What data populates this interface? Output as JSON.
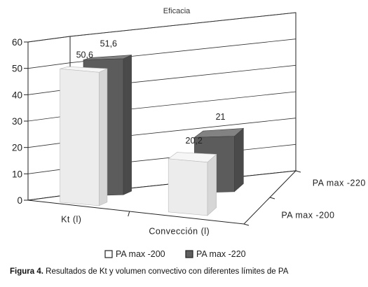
{
  "chart_data": {
    "type": "bar",
    "title": "Eficacia",
    "categories": [
      "Kt (l)",
      "Convección (l)"
    ],
    "series": [
      {
        "name": "PA max -200",
        "values": [
          50.6,
          20.2
        ],
        "labels": [
          "50,6",
          "20,2"
        ],
        "color": "#e6e6e6"
      },
      {
        "name": "PA max -220",
        "values": [
          51.6,
          21.0
        ],
        "labels": [
          "51,6",
          "21"
        ],
        "color": "#5f5f5f"
      }
    ],
    "ylim": [
      0,
      60
    ],
    "yticks": [
      "0",
      "10",
      "20",
      "30",
      "40",
      "50",
      "60"
    ],
    "depth_labels": [
      "PA max -200",
      "PA max -220"
    ],
    "grid": true,
    "legend": "bottom"
  },
  "caption": {
    "label": "Figura 4.",
    "text": "Resultados de Kt y volumen convectivo con diferentes límites de PA"
  }
}
